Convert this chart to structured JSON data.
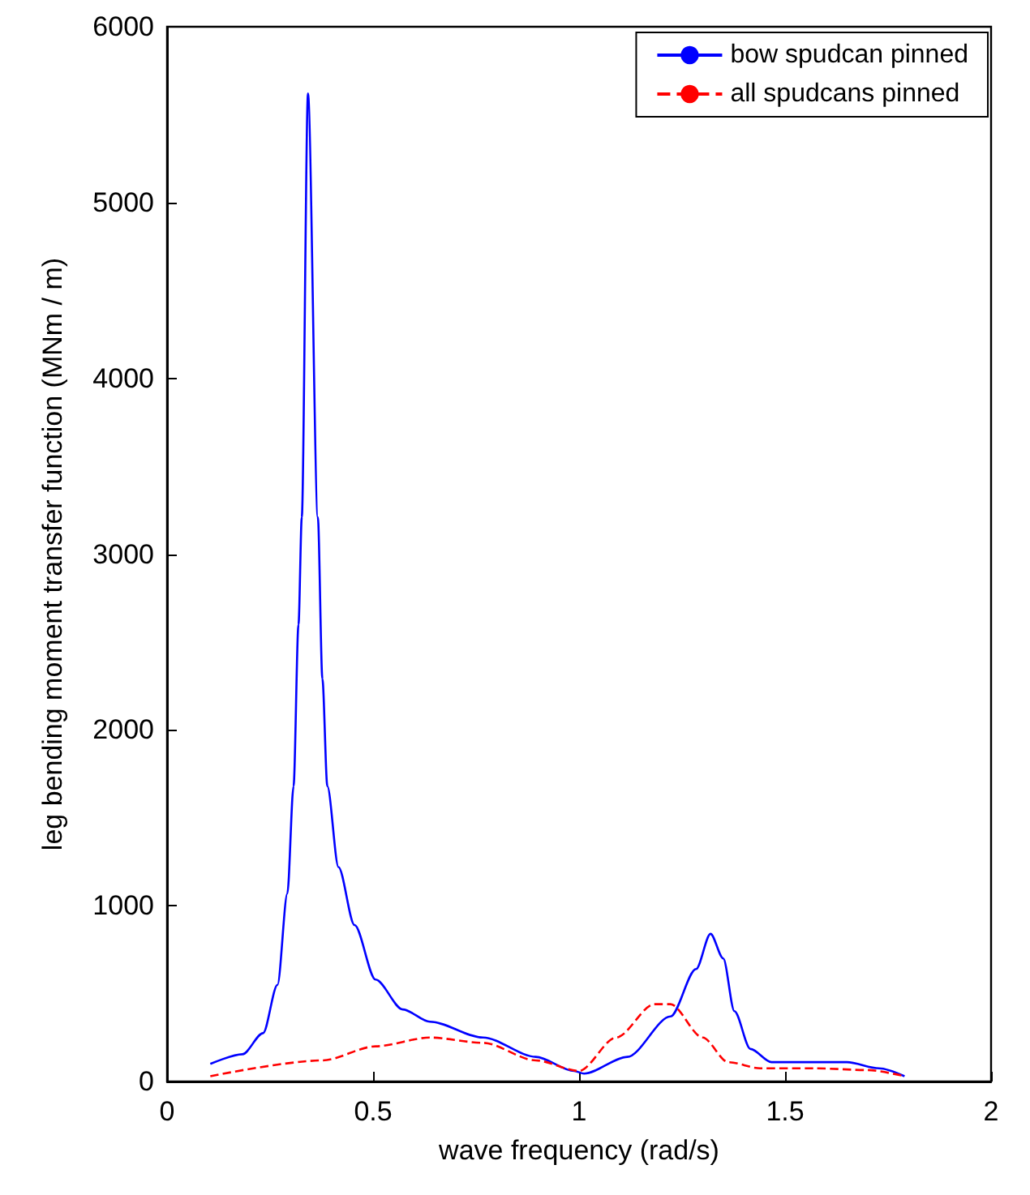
{
  "chart_data": {
    "type": "line",
    "xlabel": "wave frequency (rad/s)",
    "ylabel": "leg bending moment transfer function (MNm / m)",
    "xlim": [
      0,
      2
    ],
    "xticks": [
      0,
      0.5,
      1,
      1.5,
      2
    ],
    "ylim": [
      0,
      6000
    ],
    "yticks": [
      0,
      1000,
      2000,
      3000,
      4000,
      5000,
      6000
    ],
    "grid": false,
    "legend": "top right",
    "marker": "none",
    "series": [
      {
        "name": "bow spudcan pinned",
        "color": "#0000ff",
        "line_style": "solid",
        "x": [
          0.105,
          0.183,
          0.233,
          0.268,
          0.292,
          0.307,
          0.319,
          0.327,
          0.342,
          0.366,
          0.377,
          0.389,
          0.416,
          0.455,
          0.506,
          0.572,
          0.638,
          0.767,
          0.895,
          0.988,
          1.012,
          1.117,
          1.222,
          1.284,
          1.319,
          1.35,
          1.377,
          1.416,
          1.467,
          1.572,
          1.65,
          1.728,
          1.79
        ],
        "values": [
          100,
          155,
          275,
          550,
          1070,
          1680,
          2600,
          3210,
          5620,
          3210,
          2290,
          1680,
          1220,
          890,
          580,
          410,
          340,
          250,
          140,
          60,
          45,
          140,
          370,
          640,
          840,
          700,
          400,
          185,
          110,
          110,
          110,
          75,
          30
        ]
      },
      {
        "name": "all spudcans pinned",
        "color": "#ff0000",
        "line_style": "dashed",
        "x": [
          0.105,
          0.377,
          0.506,
          0.638,
          0.767,
          0.895,
          1.0,
          1.09,
          1.183,
          1.222,
          1.3,
          1.362,
          1.44,
          1.572,
          1.7,
          1.79
        ],
        "values": [
          30,
          120,
          200,
          250,
          220,
          120,
          60,
          250,
          440,
          440,
          250,
          110,
          75,
          75,
          65,
          30
        ]
      }
    ]
  }
}
